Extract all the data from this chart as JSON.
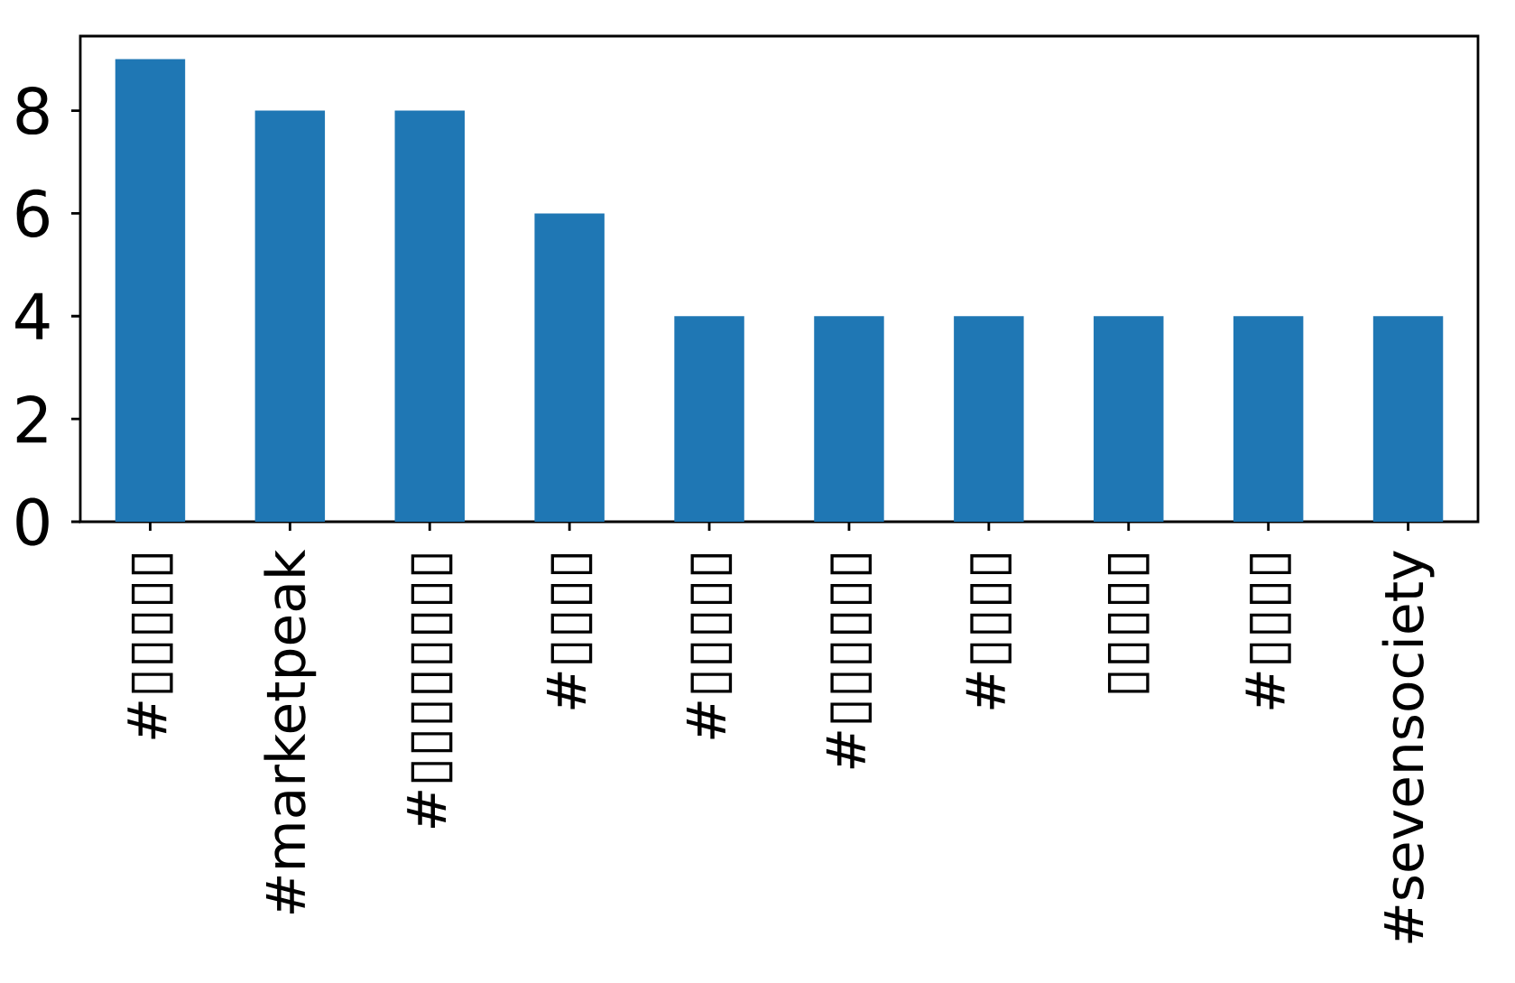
{
  "chart_data": {
    "type": "bar",
    "categories": [
      "#▯▯▯▯▯",
      "#marketpeak",
      "#▯▯▯▯▯▯▯▯",
      "#▯▯▯▯",
      "#▯▯▯▯▯",
      "#▯▯▯▯▯▯",
      "#▯▯▯▯",
      "▯▯▯▯▯",
      "#▯▯▯▯",
      "#sevensociety"
    ],
    "values": [
      9,
      8,
      8,
      6,
      4,
      4,
      4,
      4,
      4,
      4
    ],
    "color": "#1f77b4",
    "ylim": [
      0,
      9.45
    ],
    "yticks": [
      0,
      2,
      4,
      6,
      8
    ],
    "grid": false
  }
}
